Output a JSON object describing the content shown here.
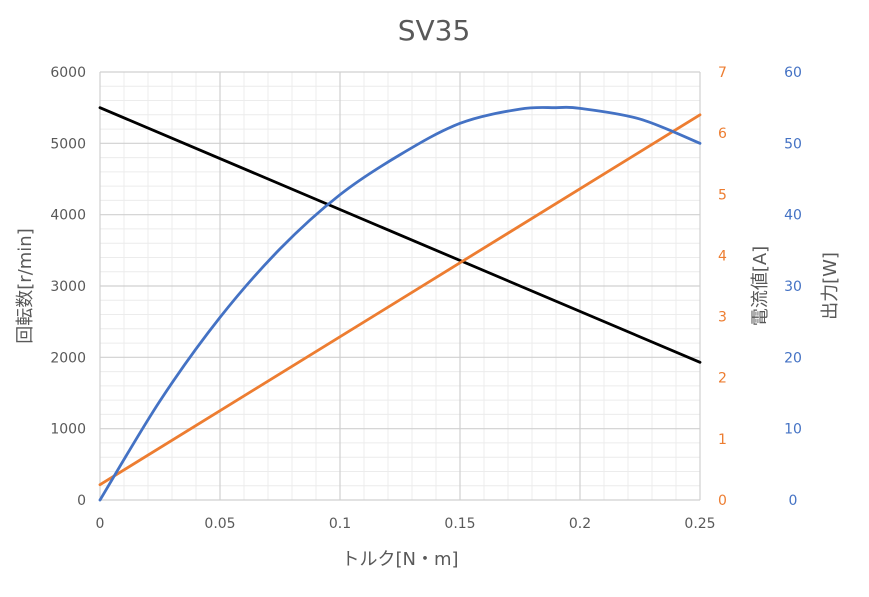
{
  "chart_data": {
    "type": "line",
    "title": "SV35",
    "xlabel": "トルク[N・m]",
    "xlim": [
      0,
      0.25
    ],
    "x_ticks": [
      "0",
      "0.05",
      "0.1",
      "0.15",
      "0.2",
      "0.25"
    ],
    "x_tick_values": [
      0,
      0.05,
      0.1,
      0.15,
      0.2,
      0.25
    ],
    "grid": true,
    "legend": "none",
    "axes": {
      "y_left": {
        "label": "回転数[r/min]",
        "range": [
          0,
          6000
        ],
        "ticks": [
          "0",
          "1000",
          "2000",
          "3000",
          "4000",
          "5000",
          "6000"
        ],
        "tick_values": [
          0,
          1000,
          2000,
          3000,
          4000,
          5000,
          6000
        ],
        "color": "#595959"
      },
      "y_right1": {
        "label": "電流値[A]",
        "range": [
          0,
          7
        ],
        "ticks": [
          "0",
          "1",
          "2",
          "3",
          "4",
          "5",
          "6",
          "7"
        ],
        "tick_values": [
          0,
          1,
          2,
          3,
          4,
          5,
          6,
          7
        ],
        "color": "#ED7D31"
      },
      "y_right2": {
        "label": "出力[W]",
        "range": [
          0,
          60
        ],
        "ticks": [
          "0",
          "10",
          "20",
          "30",
          "40",
          "50",
          "60"
        ],
        "tick_values": [
          0,
          10,
          20,
          30,
          40,
          50,
          60
        ],
        "color": "#4472C4"
      }
    },
    "series": [
      {
        "axis": "y_left",
        "color": "#000000",
        "x": [
          0,
          0.25
        ],
        "y": [
          5500,
          1930
        ]
      },
      {
        "axis": "y_right1",
        "color": "#ED7D31",
        "x": [
          0,
          0.25
        ],
        "y": [
          0.25,
          6.3
        ]
      },
      {
        "axis": "y_right2",
        "color": "#4472C4",
        "x": [
          0,
          0.025,
          0.05,
          0.075,
          0.1,
          0.125,
          0.15,
          0.175,
          0.19,
          0.2,
          0.225,
          0.25
        ],
        "y": [
          0,
          13.9,
          25.6,
          35.2,
          42.8,
          48.4,
          52.8,
          54.8,
          55.0,
          54.9,
          53.4,
          50.0
        ]
      }
    ]
  }
}
